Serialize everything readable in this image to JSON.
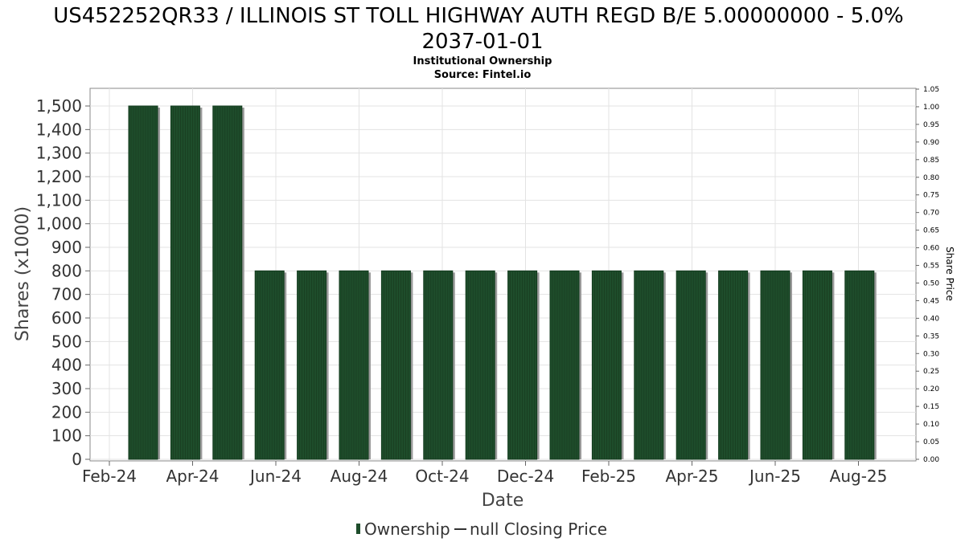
{
  "chart_data": {
    "type": "bar",
    "title_line1": "US452252QR33 / ILLINOIS ST TOLL HIGHWAY AUTH REGD B/E 5.00000000 - 5.0%",
    "title_line2": "2037-01-01",
    "subtitle_line1": "Institutional Ownership",
    "subtitle_line2": "Source: Fintel.io",
    "xlabel": "Date",
    "ylabel": "Shares (x1000)",
    "y2label": "Share Price",
    "x_ticks": [
      "Feb-24",
      "Apr-24",
      "Jun-24",
      "Aug-24",
      "Oct-24",
      "Dec-24",
      "Feb-25",
      "Apr-25",
      "Jun-25",
      "Aug-25"
    ],
    "ylim": [
      0,
      1500
    ],
    "y_ticks": [
      "0",
      "100",
      "200",
      "300",
      "400",
      "500",
      "600",
      "700",
      "800",
      "900",
      "1,000",
      "1,100",
      "1,200",
      "1,300",
      "1,400",
      "1,500"
    ],
    "y2lim": [
      0,
      1.05
    ],
    "y2_ticks": [
      "0.00",
      "0.05",
      "0.10",
      "0.15",
      "0.20",
      "0.25",
      "0.30",
      "0.35",
      "0.40",
      "0.45",
      "0.50",
      "0.55",
      "0.60",
      "0.65",
      "0.70",
      "0.75",
      "0.80",
      "0.85",
      "0.90",
      "0.95",
      "1.00",
      "1.05"
    ],
    "grid": true,
    "legend_position": "bottom",
    "legend": [
      {
        "label": "Ownership",
        "symbol": "bar"
      },
      {
        "label": "null Closing Price",
        "symbol": "line"
      }
    ],
    "series": [
      {
        "name": "Ownership",
        "color": "#1e4d2b",
        "values": [
          1500,
          1500,
          1500,
          800,
          800,
          800,
          800,
          800,
          800,
          800,
          800,
          800,
          800,
          800,
          800,
          800,
          800,
          800
        ]
      }
    ]
  }
}
